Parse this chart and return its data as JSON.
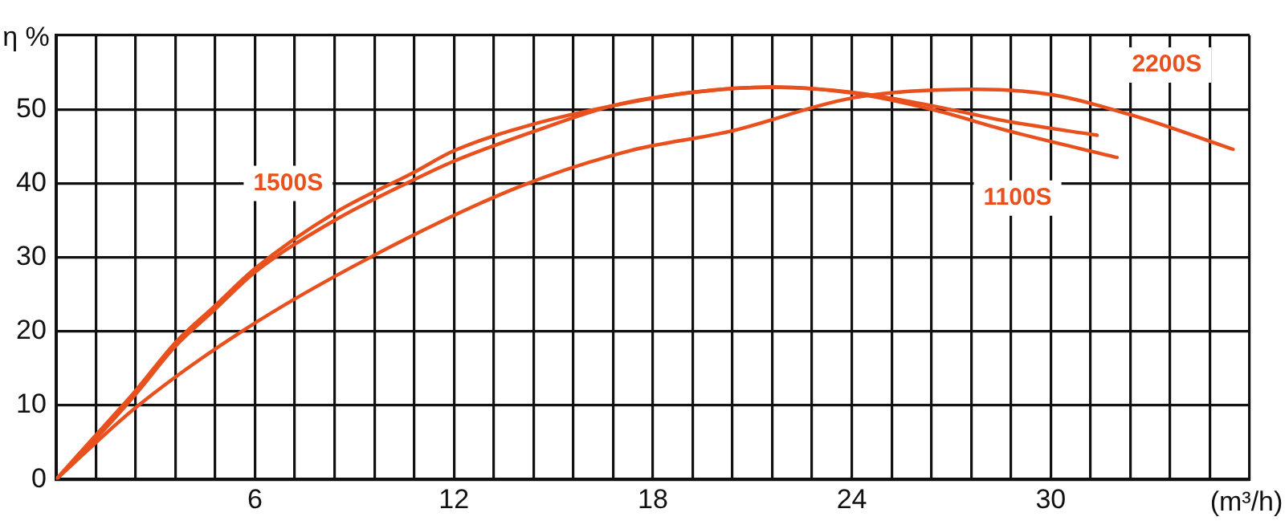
{
  "chart_data": {
    "type": "line",
    "xlabel": "(m³/h)",
    "ylabel": "η %",
    "xlim": [
      0,
      36
    ],
    "ylim": [
      0,
      60
    ],
    "xticks": [
      {
        "value": 0,
        "label": null
      },
      {
        "value": 1.2,
        "label": null
      },
      {
        "value": 2.4,
        "label": null
      },
      {
        "value": 3.6,
        "label": null
      },
      {
        "value": 4.8,
        "label": null
      },
      6,
      {
        "value": 7.2,
        "label": null
      },
      {
        "value": 8.4,
        "label": null
      },
      {
        "value": 9.6,
        "label": null
      },
      {
        "value": 10.8,
        "label": null
      },
      12,
      {
        "value": 13.2,
        "label": null
      },
      {
        "value": 14.4,
        "label": null
      },
      {
        "value": 15.6,
        "label": null
      },
      {
        "value": 16.8,
        "label": null
      },
      18,
      {
        "value": 19.2,
        "label": null
      },
      {
        "value": 20.4,
        "label": null
      },
      {
        "value": 21.6,
        "label": null
      },
      {
        "value": 22.8,
        "label": null
      },
      24,
      {
        "value": 25.2,
        "label": null
      },
      {
        "value": 26.4,
        "label": null
      },
      {
        "value": 27.6,
        "label": null
      },
      {
        "value": 28.8,
        "label": null
      },
      30,
      {
        "value": 31.2,
        "label": null
      },
      {
        "value": 32.4,
        "label": null
      },
      {
        "value": 33.6,
        "label": null
      },
      {
        "value": 34.8,
        "label": null
      },
      {
        "value": 36,
        "label": null
      }
    ],
    "yticks": [
      0,
      10,
      20,
      30,
      40,
      50,
      {
        "value": 60,
        "label": null
      }
    ],
    "grid": true,
    "legend": false,
    "marker": "none",
    "line_style": "solid",
    "series": [
      {
        "name": "1500S",
        "color": "#e8501e",
        "x": [
          0,
          1.2,
          2.4,
          3.6,
          4.8,
          6,
          8.4,
          10.8,
          12,
          14.4,
          16.8,
          19.2,
          21.6,
          24,
          26.4,
          28.8,
          31.4
        ],
        "values": [
          0,
          6,
          12,
          18.5,
          23.5,
          28.5,
          36,
          41.5,
          44.4,
          48,
          50.5,
          52.3,
          53,
          52.3,
          50.5,
          48.3,
          46.5
        ]
      },
      {
        "name": "1100S",
        "color": "#e8501e",
        "x": [
          0,
          1.2,
          2.4,
          3.6,
          4.8,
          6,
          8.4,
          10.8,
          12,
          14.4,
          16.8,
          19.2,
          21.6,
          24,
          26.4,
          28.8,
          32
        ],
        "values": [
          0,
          5.5,
          11.5,
          18,
          23,
          28,
          35,
          40.5,
          43,
          47,
          50.5,
          52.3,
          53,
          52.2,
          50,
          47,
          43.5
        ]
      },
      {
        "name": "2200S",
        "color": "#e8501e",
        "x": [
          0,
          2.4,
          5.6,
          9.6,
          14,
          17.3,
          20.3,
          24.1,
          27.7,
          30,
          32.6,
          35.5
        ],
        "values": [
          0,
          9.7,
          20,
          30.3,
          39.6,
          44.4,
          47,
          51.6,
          52.7,
          52,
          49,
          44.6
        ]
      }
    ]
  }
}
